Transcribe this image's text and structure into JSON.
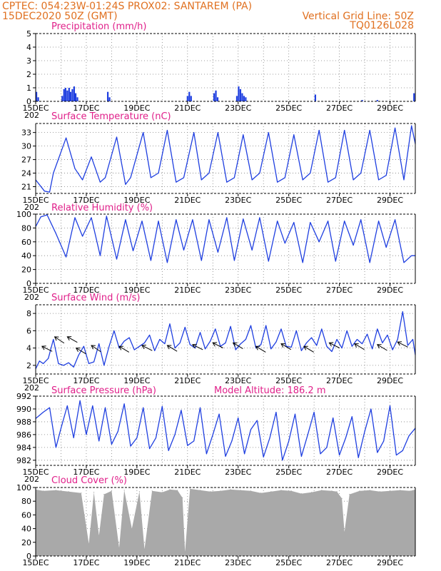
{
  "header": {
    "line1": "CPTEC:   054:23W-01:24S   PROX02: SANTAREM (PA)",
    "line2_left": "15DEC2020 50Z (GMT)",
    "line2_right": "Vertical Grid Line: 50Z",
    "line3_right": "TQ0126L028",
    "model_altitude": "Model Altitude: 186.2 m"
  },
  "colors": {
    "header": "#e07020",
    "panel_title": "#e0208a",
    "series": "#1f3fe0",
    "cloud": "#a9a9a9",
    "grid": "#808080"
  },
  "x_labels": [
    "15DEC",
    "17DEC",
    "19DEC",
    "21DEC",
    "23DEC",
    "25DEC",
    "27DEC",
    "29DEC"
  ],
  "year_stub": "202",
  "chart_data": [
    {
      "type": "bar",
      "title": "Precipitation (mm/h)",
      "ylim": [
        0,
        5
      ],
      "yticks": [
        "0",
        "1",
        "2",
        "3",
        "4",
        "5"
      ],
      "bars": [
        {
          "day": 0.03,
          "value": 0.7
        },
        {
          "day": 0.1,
          "value": 0.3
        },
        {
          "day": 1.05,
          "value": 0.4
        },
        {
          "day": 1.12,
          "value": 0.9
        },
        {
          "day": 1.18,
          "value": 1.0
        },
        {
          "day": 1.25,
          "value": 0.8
        },
        {
          "day": 1.32,
          "value": 1.0
        },
        {
          "day": 1.38,
          "value": 0.7
        },
        {
          "day": 1.45,
          "value": 0.9
        },
        {
          "day": 1.52,
          "value": 1.1
        },
        {
          "day": 1.58,
          "value": 0.6
        },
        {
          "day": 1.65,
          "value": 0.3
        },
        {
          "day": 2.85,
          "value": 0.7
        },
        {
          "day": 2.92,
          "value": 0.3
        },
        {
          "day": 6.0,
          "value": 0.4
        },
        {
          "day": 6.07,
          "value": 0.7
        },
        {
          "day": 6.14,
          "value": 0.4
        },
        {
          "day": 7.05,
          "value": 0.6
        },
        {
          "day": 7.12,
          "value": 0.8
        },
        {
          "day": 7.19,
          "value": 0.3
        },
        {
          "day": 7.95,
          "value": 0.4
        },
        {
          "day": 8.02,
          "value": 1.1
        },
        {
          "day": 8.09,
          "value": 0.9
        },
        {
          "day": 8.16,
          "value": 0.6
        },
        {
          "day": 8.23,
          "value": 0.4
        },
        {
          "day": 8.3,
          "value": 0.3
        },
        {
          "day": 11.05,
          "value": 0.5
        },
        {
          "day": 12.9,
          "value": 0.1
        },
        {
          "day": 13.5,
          "value": 0.1
        },
        {
          "day": 14.95,
          "value": 0.6
        }
      ]
    },
    {
      "type": "line",
      "title": "Surface Temperature (nC)",
      "ylim": [
        19.5,
        35
      ],
      "yticks": [
        "21",
        "24",
        "27",
        "30",
        "33"
      ],
      "ytick_values": [
        21,
        24,
        27,
        30,
        33
      ],
      "x": [
        0,
        0.35,
        0.55,
        0.7,
        1.2,
        1.55,
        1.85,
        2.2,
        2.55,
        2.75,
        3.2,
        3.55,
        3.75,
        4.25,
        4.55,
        4.85,
        5.2,
        5.55,
        5.85,
        6.25,
        6.55,
        6.85,
        7.2,
        7.55,
        7.85,
        8.2,
        8.55,
        8.85,
        9.2,
        9.55,
        9.85,
        10.2,
        10.55,
        10.85,
        11.2,
        11.55,
        11.85,
        12.2,
        12.55,
        12.85,
        13.2,
        13.55,
        13.85,
        14.2,
        14.55,
        14.85,
        15.0
      ],
      "y": [
        22.5,
        20.0,
        19.8,
        24.0,
        31.8,
        25.0,
        22.5,
        27.6,
        22.0,
        23.0,
        32.0,
        21.5,
        23.0,
        33.0,
        23.0,
        24.0,
        33.5,
        22.0,
        23.0,
        33.0,
        22.5,
        24.0,
        33.0,
        22.0,
        23.0,
        32.5,
        22.5,
        24.0,
        33.0,
        22.0,
        23.0,
        32.5,
        22.5,
        24.0,
        33.5,
        22.0,
        23.0,
        33.5,
        22.5,
        24.0,
        33.5,
        22.5,
        23.5,
        34.0,
        22.5,
        34.5,
        30.5
      ]
    },
    {
      "type": "line",
      "title": "Relative Humidity (%)",
      "ylim": [
        0,
        100
      ],
      "yticks": [
        "0",
        "20",
        "40",
        "60",
        "80",
        "100"
      ],
      "ytick_values": [
        0,
        20,
        40,
        60,
        80,
        100
      ],
      "x": [
        0,
        0.2,
        0.45,
        0.8,
        1.2,
        1.55,
        1.85,
        2.2,
        2.55,
        2.8,
        3.2,
        3.55,
        3.85,
        4.2,
        4.55,
        4.85,
        5.2,
        5.55,
        5.85,
        6.2,
        6.55,
        6.85,
        7.2,
        7.55,
        7.85,
        8.2,
        8.55,
        8.85,
        9.2,
        9.55,
        9.85,
        10.2,
        10.55,
        10.85,
        11.2,
        11.55,
        11.85,
        12.2,
        12.55,
        12.85,
        13.2,
        13.55,
        13.85,
        14.2,
        14.55,
        14.85,
        15.0
      ],
      "y": [
        82,
        96,
        99,
        72,
        38,
        95,
        68,
        95,
        40,
        97,
        35,
        92,
        47,
        90,
        33,
        90,
        30,
        92,
        48,
        92,
        33,
        92,
        45,
        95,
        33,
        93,
        48,
        95,
        32,
        90,
        58,
        88,
        30,
        88,
        60,
        90,
        32,
        90,
        55,
        92,
        30,
        90,
        52,
        92,
        30,
        40,
        40
      ]
    },
    {
      "type": "line",
      "title": "Surface Wind (m/s)",
      "ylim": [
        1,
        9
      ],
      "yticks": [
        "2",
        "4",
        "6",
        "8"
      ],
      "ytick_values": [
        2,
        4,
        6,
        8
      ],
      "x": [
        0,
        0.15,
        0.3,
        0.5,
        0.7,
        0.9,
        1.1,
        1.3,
        1.5,
        1.7,
        1.9,
        2.1,
        2.3,
        2.5,
        2.7,
        2.9,
        3.1,
        3.3,
        3.5,
        3.7,
        3.9,
        4.1,
        4.3,
        4.5,
        4.7,
        4.9,
        5.1,
        5.3,
        5.5,
        5.7,
        5.9,
        6.1,
        6.3,
        6.5,
        6.7,
        6.9,
        7.1,
        7.3,
        7.5,
        7.7,
        7.9,
        8.1,
        8.3,
        8.5,
        8.7,
        8.9,
        9.1,
        9.3,
        9.5,
        9.7,
        9.9,
        10.1,
        10.3,
        10.5,
        10.7,
        10.9,
        11.1,
        11.3,
        11.5,
        11.7,
        11.9,
        12.1,
        12.3,
        12.5,
        12.7,
        12.9,
        13.1,
        13.3,
        13.5,
        13.7,
        13.9,
        14.1,
        14.3,
        14.5,
        14.7,
        14.9,
        15.0
      ],
      "y": [
        1.6,
        2.5,
        2.2,
        2.8,
        5.0,
        2.2,
        2.0,
        2.3,
        1.8,
        3.2,
        4.2,
        2.2,
        2.4,
        4.5,
        2.0,
        4.2,
        6.0,
        4.0,
        4.8,
        5.2,
        3.8,
        4.2,
        4.6,
        5.5,
        3.7,
        5.0,
        4.5,
        6.8,
        4.0,
        4.6,
        6.4,
        4.4,
        4.0,
        5.8,
        3.9,
        4.8,
        6.2,
        4.2,
        4.6,
        6.5,
        3.8,
        4.5,
        5.0,
        6.6,
        4.0,
        4.4,
        6.6,
        3.9,
        4.7,
        6.2,
        4.2,
        4.1,
        6.0,
        3.7,
        4.6,
        5.2,
        4.3,
        6.2,
        4.2,
        3.6,
        5.0,
        4.0,
        6.0,
        4.2,
        5.0,
        4.5,
        5.6,
        3.9,
        6.2,
        4.6,
        5.5,
        3.8,
        5.0,
        8.2,
        4.3,
        5.0,
        3.2
      ]
    },
    {
      "type": "line",
      "title": "Surface Pressure (hPa)",
      "ylim": [
        981.2,
        992
      ],
      "yticks": [
        "982",
        "984",
        "986",
        "988",
        "990",
        "992"
      ],
      "ytick_values": [
        982,
        984,
        986,
        988,
        990,
        992
      ],
      "x": [
        0,
        0.3,
        0.55,
        0.8,
        1.0,
        1.25,
        1.5,
        1.75,
        2.0,
        2.25,
        2.5,
        2.75,
        3.0,
        3.25,
        3.5,
        3.75,
        4.0,
        4.25,
        4.5,
        4.75,
        5.0,
        5.25,
        5.5,
        5.75,
        6.0,
        6.25,
        6.5,
        6.75,
        7.0,
        7.25,
        7.5,
        7.75,
        8.0,
        8.25,
        8.5,
        8.75,
        9.0,
        9.25,
        9.5,
        9.75,
        10.0,
        10.25,
        10.5,
        10.75,
        11.0,
        11.25,
        11.5,
        11.75,
        12.0,
        12.25,
        12.5,
        12.75,
        13.0,
        13.25,
        13.5,
        13.75,
        14.0,
        14.25,
        14.5,
        14.75,
        15.0
      ],
      "y": [
        988.5,
        989.5,
        990.2,
        984.0,
        987.0,
        990.5,
        985.5,
        991.3,
        986.0,
        990.5,
        985.0,
        990.2,
        984.5,
        986.5,
        990.8,
        984.2,
        985.5,
        990.2,
        983.8,
        985.5,
        990.4,
        983.5,
        986.0,
        989.8,
        984.3,
        985.0,
        990.2,
        983.0,
        986.0,
        989.2,
        982.6,
        985.0,
        988.6,
        983.0,
        986.8,
        988.2,
        982.5,
        985.5,
        989.5,
        982.0,
        985.0,
        989.2,
        982.6,
        986.0,
        989.5,
        983.0,
        984.0,
        988.6,
        982.8,
        985.5,
        988.8,
        982.4,
        986.5,
        990.0,
        983.2,
        985.0,
        990.5,
        982.8,
        983.5,
        985.8,
        987.0
      ]
    },
    {
      "type": "area",
      "title": "Cloud Cover (%)",
      "ylim": [
        0,
        100
      ],
      "yticks": [
        "0",
        "20",
        "40",
        "60",
        "80",
        "100"
      ],
      "ytick_values": [
        0,
        20,
        40,
        60,
        80,
        100
      ],
      "x": [
        0,
        0.3,
        0.8,
        1.3,
        1.8,
        2.1,
        2.3,
        2.5,
        2.7,
        3.0,
        3.3,
        3.5,
        3.8,
        4.1,
        4.3,
        4.6,
        5.0,
        5.3,
        5.6,
        5.8,
        5.9,
        6.1,
        6.5,
        6.9,
        7.3,
        7.7,
        8.1,
        8.5,
        8.9,
        9.3,
        9.7,
        10.1,
        10.5,
        10.9,
        11.3,
        11.7,
        11.9,
        12.1,
        12.2,
        12.4,
        12.8,
        13.2,
        13.6,
        14.0,
        14.4,
        14.8,
        15.0
      ],
      "y": [
        97,
        95,
        96,
        94,
        92,
        18,
        93,
        30,
        90,
        95,
        12,
        96,
        40,
        94,
        10,
        95,
        93,
        97,
        96,
        85,
        6,
        98,
        96,
        94,
        95,
        97,
        96,
        95,
        92,
        94,
        96,
        95,
        91,
        93,
        96,
        95,
        94,
        84,
        35,
        90,
        95,
        96,
        94,
        95,
        96,
        95,
        97
      ]
    }
  ],
  "wind_arrows": [
    {
      "day": 0.25,
      "value": 4.2,
      "dir": [
        -1,
        0.5
      ]
    },
    {
      "day": 0.75,
      "value": 5.3,
      "dir": [
        -0.9,
        0.6
      ]
    },
    {
      "day": 1.25,
      "value": 5.3,
      "dir": [
        -0.9,
        0.5
      ]
    },
    {
      "day": 1.6,
      "value": 4.0,
      "dir": [
        -1,
        0.6
      ]
    },
    {
      "day": 2.2,
      "value": 4.3,
      "dir": [
        -0.9,
        0.6
      ]
    },
    {
      "day": 3.3,
      "value": 4.2,
      "dir": [
        -1,
        0.6
      ]
    },
    {
      "day": 4.2,
      "value": 4.3,
      "dir": [
        -1,
        0.5
      ]
    },
    {
      "day": 5.2,
      "value": 4.3,
      "dir": [
        -1,
        0.6
      ]
    },
    {
      "day": 6.2,
      "value": 4.4,
      "dir": [
        -1,
        0.5
      ]
    },
    {
      "day": 7.0,
      "value": 4.6,
      "dir": [
        -1,
        0.5
      ]
    },
    {
      "day": 7.8,
      "value": 4.6,
      "dir": [
        -1,
        0.6
      ]
    },
    {
      "day": 8.7,
      "value": 4.2,
      "dir": [
        -1,
        0.6
      ]
    },
    {
      "day": 9.7,
      "value": 4.5,
      "dir": [
        -1,
        0.6
      ]
    },
    {
      "day": 10.6,
      "value": 4.2,
      "dir": [
        -1,
        0.6
      ]
    },
    {
      "day": 11.6,
      "value": 4.6,
      "dir": [
        -1,
        0.5
      ]
    },
    {
      "day": 12.6,
      "value": 4.5,
      "dir": [
        -1,
        0.6
      ]
    },
    {
      "day": 13.5,
      "value": 4.4,
      "dir": [
        -1,
        0.6
      ]
    },
    {
      "day": 14.3,
      "value": 4.7,
      "dir": [
        -1,
        0.5
      ]
    }
  ]
}
